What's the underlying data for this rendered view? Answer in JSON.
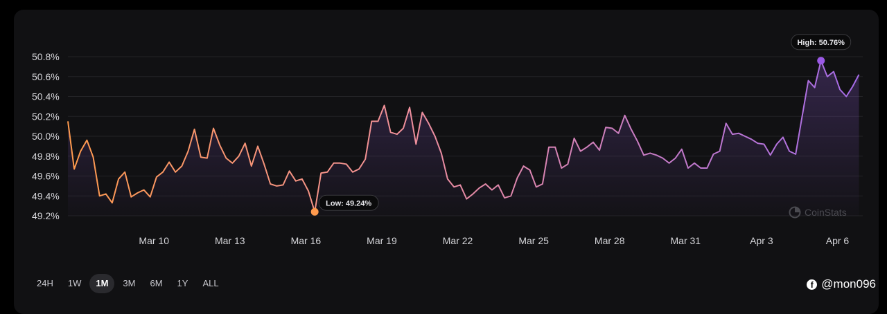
{
  "chart_data": {
    "type": "area",
    "x_ticks": [
      "Mar 10",
      "Mar 13",
      "Mar 16",
      "Mar 19",
      "Mar 22",
      "Mar 25",
      "Mar 28",
      "Mar 31",
      "Apr 3",
      "Apr 6"
    ],
    "y_ticks": [
      "49.2%",
      "49.4%",
      "49.6%",
      "49.8%",
      "50.0%",
      "50.2%",
      "50.4%",
      "50.6%",
      "50.8%"
    ],
    "ylim": [
      49.2,
      50.8
    ],
    "x_range_days": [
      6.6,
      38.0
    ],
    "x_tick_days": [
      10,
      13,
      16,
      19,
      22,
      25,
      28,
      31,
      34,
      37
    ],
    "series": [
      {
        "points": [
          [
            6.6,
            50.15
          ],
          [
            6.85,
            49.67
          ],
          [
            7.1,
            49.85
          ],
          [
            7.35,
            49.96
          ],
          [
            7.6,
            49.79
          ],
          [
            7.85,
            49.4
          ],
          [
            8.1,
            49.42
          ],
          [
            8.35,
            49.33
          ],
          [
            8.6,
            49.57
          ],
          [
            8.85,
            49.64
          ],
          [
            9.1,
            49.39
          ],
          [
            9.35,
            49.43
          ],
          [
            9.6,
            49.46
          ],
          [
            9.85,
            49.39
          ],
          [
            10.1,
            49.59
          ],
          [
            10.35,
            49.64
          ],
          [
            10.6,
            49.74
          ],
          [
            10.85,
            49.64
          ],
          [
            11.1,
            49.7
          ],
          [
            11.35,
            49.85
          ],
          [
            11.6,
            50.07
          ],
          [
            11.85,
            49.79
          ],
          [
            12.1,
            49.78
          ],
          [
            12.35,
            50.08
          ],
          [
            12.6,
            49.91
          ],
          [
            12.85,
            49.78
          ],
          [
            13.1,
            49.73
          ],
          [
            13.35,
            49.8
          ],
          [
            13.6,
            49.93
          ],
          [
            13.85,
            49.7
          ],
          [
            14.1,
            49.9
          ],
          [
            14.35,
            49.72
          ],
          [
            14.6,
            49.52
          ],
          [
            14.85,
            49.5
          ],
          [
            15.1,
            49.51
          ],
          [
            15.35,
            49.65
          ],
          [
            15.6,
            49.55
          ],
          [
            15.85,
            49.57
          ],
          [
            16.1,
            49.45
          ],
          [
            16.35,
            49.24
          ],
          [
            16.6,
            49.63
          ],
          [
            16.85,
            49.64
          ],
          [
            17.1,
            49.73
          ],
          [
            17.35,
            49.73
          ],
          [
            17.6,
            49.72
          ],
          [
            17.85,
            49.64
          ],
          [
            18.1,
            49.67
          ],
          [
            18.35,
            49.77
          ],
          [
            18.6,
            50.15
          ],
          [
            18.85,
            50.15
          ],
          [
            19.1,
            50.31
          ],
          [
            19.35,
            50.04
          ],
          [
            19.6,
            50.02
          ],
          [
            19.85,
            50.08
          ],
          [
            20.1,
            50.29
          ],
          [
            20.35,
            49.92
          ],
          [
            20.6,
            50.24
          ],
          [
            20.85,
            50.13
          ],
          [
            21.1,
            50.0
          ],
          [
            21.35,
            49.83
          ],
          [
            21.6,
            49.57
          ],
          [
            21.85,
            49.49
          ],
          [
            22.1,
            49.51
          ],
          [
            22.35,
            49.37
          ],
          [
            22.6,
            49.42
          ],
          [
            22.85,
            49.48
          ],
          [
            23.1,
            49.52
          ],
          [
            23.35,
            49.46
          ],
          [
            23.6,
            49.51
          ],
          [
            23.85,
            49.38
          ],
          [
            24.1,
            49.4
          ],
          [
            24.35,
            49.58
          ],
          [
            24.6,
            49.7
          ],
          [
            24.85,
            49.66
          ],
          [
            25.1,
            49.49
          ],
          [
            25.35,
            49.52
          ],
          [
            25.6,
            49.89
          ],
          [
            25.85,
            49.89
          ],
          [
            26.1,
            49.68
          ],
          [
            26.35,
            49.72
          ],
          [
            26.6,
            49.98
          ],
          [
            26.85,
            49.85
          ],
          [
            27.1,
            49.89
          ],
          [
            27.35,
            49.94
          ],
          [
            27.6,
            49.86
          ],
          [
            27.85,
            50.09
          ],
          [
            28.1,
            50.08
          ],
          [
            28.35,
            50.03
          ],
          [
            28.6,
            50.21
          ],
          [
            28.85,
            50.07
          ],
          [
            29.1,
            49.95
          ],
          [
            29.35,
            49.81
          ],
          [
            29.6,
            49.83
          ],
          [
            29.85,
            49.81
          ],
          [
            30.1,
            49.78
          ],
          [
            30.35,
            49.73
          ],
          [
            30.6,
            49.78
          ],
          [
            30.85,
            49.87
          ],
          [
            31.1,
            49.68
          ],
          [
            31.35,
            49.73
          ],
          [
            31.6,
            49.68
          ],
          [
            31.85,
            49.68
          ],
          [
            32.1,
            49.82
          ],
          [
            32.35,
            49.85
          ],
          [
            32.6,
            50.13
          ],
          [
            32.85,
            50.02
          ],
          [
            33.1,
            50.03
          ],
          [
            33.35,
            50.0
          ],
          [
            33.6,
            49.97
          ],
          [
            33.85,
            49.93
          ],
          [
            34.1,
            49.92
          ],
          [
            34.35,
            49.81
          ],
          [
            34.6,
            49.92
          ],
          [
            34.85,
            49.99
          ],
          [
            35.1,
            49.85
          ],
          [
            35.35,
            49.82
          ],
          [
            35.6,
            50.19
          ],
          [
            35.85,
            50.56
          ],
          [
            36.1,
            50.49
          ],
          [
            36.35,
            50.76
          ],
          [
            36.6,
            50.6
          ],
          [
            36.85,
            50.65
          ],
          [
            37.1,
            50.47
          ],
          [
            37.35,
            50.4
          ],
          [
            37.6,
            50.5
          ],
          [
            37.85,
            50.62
          ]
        ]
      }
    ],
    "low": {
      "label": "Low: 49.24%",
      "x": 16.35,
      "y": 49.24
    },
    "high": {
      "label": "High: 50.76%",
      "x": 36.35,
      "y": 50.76
    },
    "watermark": "CoinStats",
    "colors": {
      "low": "#ff9a4d",
      "high": "#9b59e6",
      "grid": "#232326",
      "axis_text": "#d6d6da"
    }
  },
  "timeframes": [
    "24H",
    "1W",
    "1M",
    "3M",
    "6M",
    "1Y",
    "ALL"
  ],
  "active_timeframe": "1M",
  "credit": {
    "icon": "facebook-icon",
    "glyph": "f",
    "handle": "@mon096"
  }
}
